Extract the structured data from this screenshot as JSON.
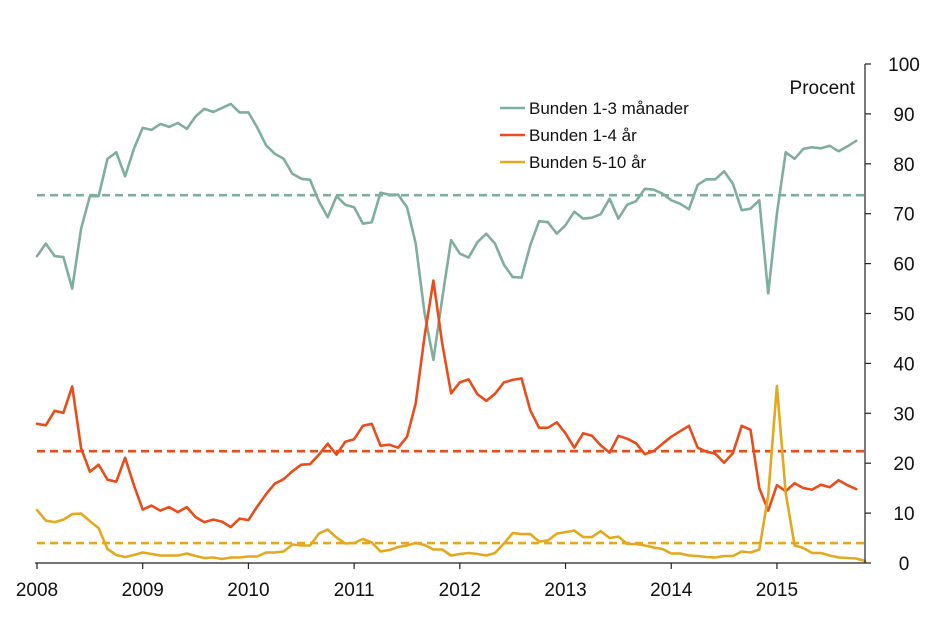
{
  "chart_data": {
    "type": "line",
    "unit_label": "Procent",
    "x_ticks": [
      "2008",
      "2009",
      "2010",
      "2011",
      "2012",
      "2013",
      "2014",
      "2015"
    ],
    "y_ticks": [
      "0",
      "10",
      "20",
      "30",
      "40",
      "50",
      "60",
      "70",
      "80",
      "90",
      "100"
    ],
    "ylim": [
      0,
      100
    ],
    "xlim": [
      2008.0,
      2015.833
    ],
    "y_axis_position": "right",
    "grid": false,
    "legend_position": "top-center",
    "series": [
      {
        "name": "Bunden 1-3 månader",
        "color": "#7fae9c",
        "points": [
          [
            2008.0,
            61.5
          ],
          [
            2008.083,
            64
          ],
          [
            2008.167,
            61.5
          ],
          [
            2008.25,
            61.3
          ],
          [
            2008.333,
            55
          ],
          [
            2008.417,
            67
          ],
          [
            2008.5,
            73.5
          ],
          [
            2008.583,
            73.5
          ],
          [
            2008.667,
            81
          ],
          [
            2008.75,
            82.3
          ],
          [
            2008.833,
            77.5
          ],
          [
            2008.917,
            83
          ],
          [
            2009.0,
            87.2
          ],
          [
            2009.083,
            86.8
          ],
          [
            2009.167,
            88
          ],
          [
            2009.25,
            87.4
          ],
          [
            2009.333,
            88.2
          ],
          [
            2009.417,
            87
          ],
          [
            2009.5,
            89.5
          ],
          [
            2009.583,
            91
          ],
          [
            2009.667,
            90.4
          ],
          [
            2009.75,
            91.2
          ],
          [
            2009.833,
            92
          ],
          [
            2009.917,
            90.3
          ],
          [
            2010.0,
            90.3
          ],
          [
            2010.083,
            87.3
          ],
          [
            2010.167,
            83.7
          ],
          [
            2010.25,
            82
          ],
          [
            2010.333,
            81
          ],
          [
            2010.417,
            78
          ],
          [
            2010.5,
            77
          ],
          [
            2010.583,
            76.8
          ],
          [
            2010.667,
            72.5
          ],
          [
            2010.75,
            69.3
          ],
          [
            2010.833,
            73.5
          ],
          [
            2010.917,
            71.8
          ],
          [
            2011.0,
            71.3
          ],
          [
            2011.083,
            68
          ],
          [
            2011.167,
            68.3
          ],
          [
            2011.25,
            74.2
          ],
          [
            2011.333,
            73.8
          ],
          [
            2011.417,
            73.8
          ],
          [
            2011.5,
            71.3
          ],
          [
            2011.583,
            64
          ],
          [
            2011.667,
            50
          ],
          [
            2011.75,
            40.7
          ],
          [
            2011.833,
            53
          ],
          [
            2011.917,
            64.7
          ],
          [
            2012.0,
            62
          ],
          [
            2012.083,
            61.2
          ],
          [
            2012.167,
            64.3
          ],
          [
            2012.25,
            66
          ],
          [
            2012.333,
            64
          ],
          [
            2012.417,
            59.8
          ],
          [
            2012.5,
            57.3
          ],
          [
            2012.583,
            57.2
          ],
          [
            2012.667,
            63.7
          ],
          [
            2012.75,
            68.5
          ],
          [
            2012.833,
            68.3
          ],
          [
            2012.917,
            66
          ],
          [
            2013.0,
            67.7
          ],
          [
            2013.083,
            70.4
          ],
          [
            2013.167,
            69
          ],
          [
            2013.25,
            69.2
          ],
          [
            2013.333,
            69.9
          ],
          [
            2013.417,
            73
          ],
          [
            2013.5,
            69
          ],
          [
            2013.583,
            71.8
          ],
          [
            2013.667,
            72.5
          ],
          [
            2013.75,
            75
          ],
          [
            2013.833,
            74.8
          ],
          [
            2013.917,
            74
          ],
          [
            2014.0,
            72.7
          ],
          [
            2014.083,
            72
          ],
          [
            2014.167,
            70.9
          ],
          [
            2014.25,
            75.8
          ],
          [
            2014.333,
            76.9
          ],
          [
            2014.417,
            76.9
          ],
          [
            2014.5,
            78.5
          ],
          [
            2014.583,
            76
          ],
          [
            2014.667,
            70.7
          ],
          [
            2014.75,
            71
          ],
          [
            2014.833,
            72.7
          ],
          [
            2014.917,
            54
          ],
          [
            2015.0,
            70
          ],
          [
            2015.083,
            82.3
          ],
          [
            2015.167,
            81
          ],
          [
            2015.25,
            83
          ],
          [
            2015.333,
            83.3
          ],
          [
            2015.417,
            83.1
          ],
          [
            2015.5,
            83.6
          ],
          [
            2015.583,
            82.5
          ],
          [
            2015.667,
            83.5
          ],
          [
            2015.75,
            84.6
          ]
        ],
        "average": 73.7
      },
      {
        "name": "Bunden 1-4 år",
        "color": "#e84d1b",
        "points": [
          [
            2008.0,
            27.9
          ],
          [
            2008.083,
            27.6
          ],
          [
            2008.167,
            30.5
          ],
          [
            2008.25,
            30.1
          ],
          [
            2008.333,
            35.4
          ],
          [
            2008.417,
            23
          ],
          [
            2008.5,
            18.3
          ],
          [
            2008.583,
            19.7
          ],
          [
            2008.667,
            16.7
          ],
          [
            2008.75,
            16.3
          ],
          [
            2008.833,
            21.1
          ],
          [
            2008.917,
            15.6
          ],
          [
            2009.0,
            10.7
          ],
          [
            2009.083,
            11.5
          ],
          [
            2009.167,
            10.5
          ],
          [
            2009.25,
            11.2
          ],
          [
            2009.333,
            10.2
          ],
          [
            2009.417,
            11.2
          ],
          [
            2009.5,
            9.2
          ],
          [
            2009.583,
            8.2
          ],
          [
            2009.667,
            8.7
          ],
          [
            2009.75,
            8.3
          ],
          [
            2009.833,
            7.2
          ],
          [
            2009.917,
            8.9
          ],
          [
            2010.0,
            8.6
          ],
          [
            2010.083,
            11.3
          ],
          [
            2010.167,
            13.8
          ],
          [
            2010.25,
            15.9
          ],
          [
            2010.333,
            16.8
          ],
          [
            2010.417,
            18.4
          ],
          [
            2010.5,
            19.7
          ],
          [
            2010.583,
            19.8
          ],
          [
            2010.667,
            21.7
          ],
          [
            2010.75,
            23.9
          ],
          [
            2010.833,
            21.7
          ],
          [
            2010.917,
            24.3
          ],
          [
            2011.0,
            24.8
          ],
          [
            2011.083,
            27.5
          ],
          [
            2011.167,
            27.9
          ],
          [
            2011.25,
            23.5
          ],
          [
            2011.333,
            23.7
          ],
          [
            2011.417,
            23.1
          ],
          [
            2011.5,
            25.3
          ],
          [
            2011.583,
            32
          ],
          [
            2011.667,
            45.5
          ],
          [
            2011.75,
            56.6
          ],
          [
            2011.833,
            44
          ],
          [
            2011.917,
            34
          ],
          [
            2012.0,
            36.2
          ],
          [
            2012.083,
            36.8
          ],
          [
            2012.167,
            33.8
          ],
          [
            2012.25,
            32.5
          ],
          [
            2012.333,
            33.9
          ],
          [
            2012.417,
            36.2
          ],
          [
            2012.5,
            36.7
          ],
          [
            2012.583,
            37
          ],
          [
            2012.667,
            30.6
          ],
          [
            2012.75,
            27.1
          ],
          [
            2012.833,
            27.1
          ],
          [
            2012.917,
            28.2
          ],
          [
            2013.0,
            26
          ],
          [
            2013.083,
            23.1
          ],
          [
            2013.167,
            26
          ],
          [
            2013.25,
            25.5
          ],
          [
            2013.333,
            23.6
          ],
          [
            2013.417,
            22.1
          ],
          [
            2013.5,
            25.5
          ],
          [
            2013.583,
            24.9
          ],
          [
            2013.667,
            24
          ],
          [
            2013.75,
            21.8
          ],
          [
            2013.833,
            22.4
          ],
          [
            2013.917,
            23.9
          ],
          [
            2014.0,
            25.3
          ],
          [
            2014.083,
            26.4
          ],
          [
            2014.167,
            27.5
          ],
          [
            2014.25,
            23.1
          ],
          [
            2014.333,
            22.3
          ],
          [
            2014.417,
            21.9
          ],
          [
            2014.5,
            20.1
          ],
          [
            2014.583,
            22
          ],
          [
            2014.667,
            27.5
          ],
          [
            2014.75,
            26.7
          ],
          [
            2014.833,
            15
          ],
          [
            2014.917,
            10.5
          ],
          [
            2015.0,
            15.6
          ],
          [
            2015.083,
            14.4
          ],
          [
            2015.167,
            16
          ],
          [
            2015.25,
            15
          ],
          [
            2015.333,
            14.7
          ],
          [
            2015.417,
            15.7
          ],
          [
            2015.5,
            15.2
          ],
          [
            2015.583,
            16.6
          ],
          [
            2015.667,
            15.6
          ],
          [
            2015.75,
            14.8
          ]
        ],
        "average": 22.4
      },
      {
        "name": "Bunden 5-10 år",
        "color": "#e3a81e",
        "points": [
          [
            2008.0,
            10.6
          ],
          [
            2008.083,
            8.5
          ],
          [
            2008.167,
            8.2
          ],
          [
            2008.25,
            8.7
          ],
          [
            2008.333,
            9.8
          ],
          [
            2008.417,
            9.9
          ],
          [
            2008.5,
            8.4
          ],
          [
            2008.583,
            7
          ],
          [
            2008.667,
            2.8
          ],
          [
            2008.75,
            1.6
          ],
          [
            2008.833,
            1.2
          ],
          [
            2008.917,
            1.6
          ],
          [
            2009.0,
            2.1
          ],
          [
            2009.083,
            1.8
          ],
          [
            2009.167,
            1.5
          ],
          [
            2009.25,
            1.5
          ],
          [
            2009.333,
            1.5
          ],
          [
            2009.417,
            1.9
          ],
          [
            2009.5,
            1.4
          ],
          [
            2009.583,
            1
          ],
          [
            2009.667,
            1.1
          ],
          [
            2009.75,
            0.8
          ],
          [
            2009.833,
            1.1
          ],
          [
            2009.917,
            1.1
          ],
          [
            2010.0,
            1.3
          ],
          [
            2010.083,
            1.3
          ],
          [
            2010.167,
            2.1
          ],
          [
            2010.25,
            2.1
          ],
          [
            2010.333,
            2.3
          ],
          [
            2010.417,
            3.7
          ],
          [
            2010.5,
            3.5
          ],
          [
            2010.583,
            3.5
          ],
          [
            2010.667,
            5.9
          ],
          [
            2010.75,
            6.7
          ],
          [
            2010.833,
            5.1
          ],
          [
            2010.917,
            3.9
          ],
          [
            2011.0,
            4
          ],
          [
            2011.083,
            4.8
          ],
          [
            2011.167,
            4.1
          ],
          [
            2011.25,
            2.3
          ],
          [
            2011.333,
            2.6
          ],
          [
            2011.417,
            3.2
          ],
          [
            2011.5,
            3.5
          ],
          [
            2011.583,
            4
          ],
          [
            2011.667,
            3.6
          ],
          [
            2011.75,
            2.7
          ],
          [
            2011.833,
            2.7
          ],
          [
            2011.917,
            1.5
          ],
          [
            2012.0,
            1.8
          ],
          [
            2012.083,
            2
          ],
          [
            2012.167,
            1.8
          ],
          [
            2012.25,
            1.5
          ],
          [
            2012.333,
            2
          ],
          [
            2012.417,
            3.9
          ],
          [
            2012.5,
            6
          ],
          [
            2012.583,
            5.8
          ],
          [
            2012.667,
            5.8
          ],
          [
            2012.75,
            4.3
          ],
          [
            2012.833,
            4.5
          ],
          [
            2012.917,
            5.9
          ],
          [
            2013.0,
            6.2
          ],
          [
            2013.083,
            6.5
          ],
          [
            2013.167,
            5.2
          ],
          [
            2013.25,
            5.2
          ],
          [
            2013.333,
            6.4
          ],
          [
            2013.417,
            5
          ],
          [
            2013.5,
            5.3
          ],
          [
            2013.583,
            3.8
          ],
          [
            2013.667,
            3.8
          ],
          [
            2013.75,
            3.5
          ],
          [
            2013.833,
            3.1
          ],
          [
            2013.917,
            2.8
          ],
          [
            2014.0,
            1.9
          ],
          [
            2014.083,
            1.9
          ],
          [
            2014.167,
            1.5
          ],
          [
            2014.25,
            1.4
          ],
          [
            2014.333,
            1.2
          ],
          [
            2014.417,
            1.1
          ],
          [
            2014.5,
            1.4
          ],
          [
            2014.583,
            1.4
          ],
          [
            2014.667,
            2.3
          ],
          [
            2014.75,
            2.1
          ],
          [
            2014.833,
            2.7
          ],
          [
            2014.917,
            13.5
          ],
          [
            2015.0,
            35.5
          ],
          [
            2015.083,
            14
          ],
          [
            2015.167,
            3.5
          ],
          [
            2015.25,
            3
          ],
          [
            2015.333,
            2
          ],
          [
            2015.417,
            2
          ],
          [
            2015.5,
            1.5
          ],
          [
            2015.583,
            1.1
          ],
          [
            2015.667,
            1
          ],
          [
            2015.75,
            0.9
          ],
          [
            2015.833,
            0.4
          ]
        ],
        "average": 4.0
      }
    ]
  }
}
